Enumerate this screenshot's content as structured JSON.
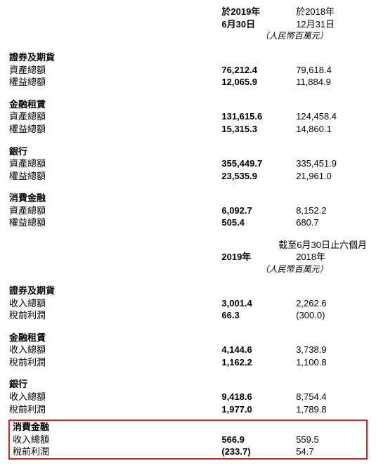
{
  "header1": {
    "col1_line1": "於2019年",
    "col1_line2": "6月30日",
    "col2_line1": "於2018年",
    "col2_line2": "12月31日",
    "unit": "（人民幣百萬元）"
  },
  "header2": {
    "super": "截至6月30日止六個月",
    "col1": "2019年",
    "col2": "2018年",
    "unit": "（人民幣百萬元）"
  },
  "labels": {
    "sec_securities": "證券及期貨",
    "sec_leasing": "金融租賃",
    "sec_bank": "銀行",
    "sec_consumer": "消費金融",
    "total_assets": "資產總額",
    "total_equity": "權益總額",
    "total_revenue": "收入總額",
    "pbt": "稅前利潤"
  },
  "top": {
    "securities": {
      "assets": [
        "76,212.4",
        "79,618.4"
      ],
      "equity": [
        "12,065.9",
        "11,884.9"
      ]
    },
    "leasing": {
      "assets": [
        "131,615.6",
        "124,458.4"
      ],
      "equity": [
        "15,315.3",
        "14,860.1"
      ]
    },
    "bank": {
      "assets": [
        "355,449.7",
        "335,451.9"
      ],
      "equity": [
        "23,535.9",
        "21,961.0"
      ]
    },
    "consumer": {
      "assets": [
        "6,092.7",
        "8,152.2"
      ],
      "equity": [
        "505.4",
        "680.7"
      ]
    }
  },
  "bottom": {
    "securities": {
      "revenue": [
        "3,001.4",
        "2,262.6"
      ],
      "pbt": [
        "66.3",
        "(300.0)"
      ]
    },
    "leasing": {
      "revenue": [
        "4,144.6",
        "3,738.9"
      ],
      "pbt": [
        "1,162.2",
        "1,100.8"
      ]
    },
    "bank": {
      "revenue": [
        "9,418.6",
        "8,754.4"
      ],
      "pbt": [
        "1,977.0",
        "1,789.8"
      ]
    },
    "consumer": {
      "revenue": [
        "566.9",
        "559.5"
      ],
      "pbt": [
        "(233.7)",
        "54.7"
      ]
    }
  }
}
